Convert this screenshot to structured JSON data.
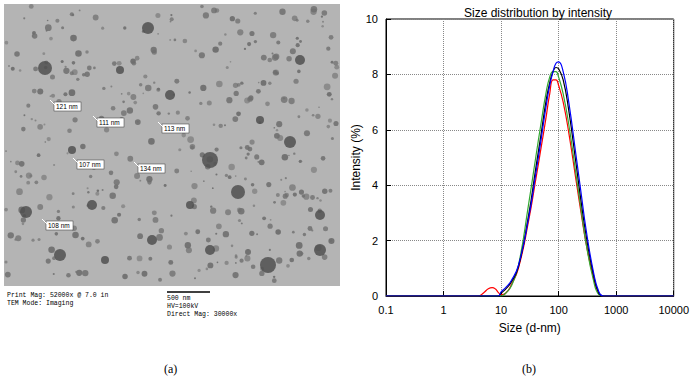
{
  "chart_data": {
    "type": "line",
    "title": "Size distribution by intensity",
    "x_label": "Size (d-nm)",
    "y_label": "Intensity (%)",
    "panel_label": "(b)",
    "log": "x",
    "grid": true,
    "xlim": [
      0.1,
      10000
    ],
    "xticks": [
      0.1,
      1,
      10,
      100,
      1000,
      10000
    ],
    "ylim": [
      0,
      10
    ],
    "yticks": [
      0,
      2,
      4,
      6,
      8,
      10
    ],
    "series": [
      {
        "color": "#ff0000",
        "x": [
          0.1,
          1,
          4,
          5,
          6,
          7,
          8,
          9,
          10,
          12,
          15,
          20,
          30,
          40,
          50,
          60,
          70,
          80,
          90,
          100,
          120,
          150,
          200,
          250,
          300,
          400,
          500,
          600,
          1000,
          10000
        ],
        "values": [
          0,
          0,
          0,
          0.12,
          0.26,
          0.3,
          0.25,
          0.12,
          0.05,
          0.1,
          0.4,
          1.0,
          2.7,
          4.2,
          5.4,
          6.4,
          7.3,
          7.8,
          7.8,
          7.6,
          7.0,
          5.9,
          4.2,
          2.9,
          1.9,
          0.7,
          0.1,
          0,
          0,
          0
        ]
      },
      {
        "color": "#33aa33",
        "x": [
          0.1,
          1,
          4,
          5,
          6,
          7,
          8,
          9,
          10,
          12,
          15,
          20,
          30,
          40,
          50,
          60,
          70,
          80,
          90,
          100,
          120,
          150,
          200,
          250,
          300,
          400,
          500,
          600,
          1000,
          10000
        ],
        "values": [
          0,
          0,
          0,
          0,
          0,
          0,
          0,
          0,
          0,
          0.1,
          0.35,
          1.1,
          3.3,
          5.0,
          6.3,
          7.3,
          7.9,
          8.1,
          8.1,
          7.9,
          7.3,
          6.2,
          4.4,
          3.0,
          1.9,
          0.6,
          0.05,
          0,
          0,
          0
        ]
      },
      {
        "color": "#000000",
        "x": [
          0.1,
          1,
          4,
          5,
          6,
          7,
          8,
          9,
          10,
          12,
          15,
          20,
          30,
          40,
          50,
          60,
          70,
          80,
          90,
          100,
          120,
          150,
          200,
          250,
          300,
          400,
          500,
          600,
          1000,
          10000
        ],
        "values": [
          0,
          0,
          0,
          0,
          0,
          0,
          0,
          0,
          0.1,
          0.25,
          0.5,
          1.05,
          2.9,
          4.6,
          5.9,
          7.0,
          7.7,
          8.1,
          8.25,
          8.2,
          7.8,
          6.7,
          4.8,
          3.3,
          2.2,
          0.8,
          0.1,
          0,
          0,
          0
        ]
      },
      {
        "color": "#0000ff",
        "x": [
          0.1,
          1,
          4,
          5,
          6,
          7,
          8,
          9,
          10,
          12,
          15,
          20,
          30,
          40,
          50,
          60,
          70,
          80,
          90,
          100,
          120,
          150,
          200,
          250,
          300,
          400,
          500,
          600,
          1000,
          10000
        ],
        "values": [
          0,
          0,
          0,
          0,
          0,
          0,
          0,
          0,
          0.15,
          0.3,
          0.55,
          1.1,
          2.8,
          4.4,
          5.7,
          6.8,
          7.6,
          8.1,
          8.4,
          8.45,
          8.1,
          7.0,
          5.1,
          3.6,
          2.4,
          0.9,
          0.15,
          0,
          0,
          0
        ]
      }
    ]
  },
  "image_panel": {
    "panel_label": "(a)",
    "annotations": [
      "121 nm",
      "111 nm",
      "113 nm",
      "107 nm",
      "134 nm",
      "108 nm"
    ],
    "footer_left": [
      "Print Mag: 52000x @ 7.0 in",
      "TEM Mode: Imaging"
    ],
    "scale_bar": "500 nm",
    "footer_right": [
      "HV=100kV",
      "Direct Mag: 30000x"
    ]
  }
}
